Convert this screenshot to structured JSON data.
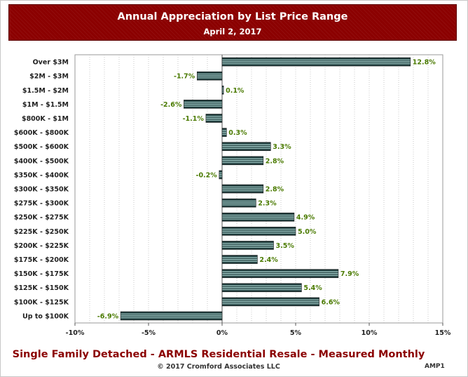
{
  "header": {
    "title": "Annual Appreciation by List Price Range",
    "subtitle": "April 2, 2017"
  },
  "footer": {
    "main": "Single Family Detached - ARMLS Residential Resale - Measured Monthly",
    "copyright": "© 2017 Cromford Associates LLC",
    "code": "AMP1"
  },
  "colors": {
    "header_bg": "#8b0000",
    "bar_dark": "#1e3a3a",
    "bar_light": "#a9d4d0",
    "value_label": "#4a7a00",
    "grid": "#bbbbbb"
  },
  "chart_data": {
    "type": "bar",
    "orientation": "horizontal",
    "title": "Annual Appreciation by List Price Range",
    "subtitle": "April 2, 2017",
    "categories": [
      "Over $3M",
      "$2M - $3M",
      "$1.5M - $2M",
      "$1M - $1.5M",
      "$800K - $1M",
      "$600K - $800K",
      "$500K - $600K",
      "$400K - $500K",
      "$350K - $400K",
      "$300K - $350K",
      "$275K - $300K",
      "$250K - $275K",
      "$225K - $250K",
      "$200K - $225K",
      "$175K - $200K",
      "$150K - $175K",
      "$125K - $150K",
      "$100K - $125K",
      "Up to $100K"
    ],
    "values": [
      12.8,
      -1.7,
      0.1,
      -2.6,
      -1.1,
      0.3,
      3.3,
      2.8,
      -0.2,
      2.8,
      2.3,
      4.9,
      5.0,
      3.5,
      2.4,
      7.9,
      5.4,
      6.6,
      -6.9
    ],
    "value_labels": [
      "12.8%",
      "-1.7%",
      "0.1%",
      "-2.6%",
      "-1.1%",
      "0.3%",
      "3.3%",
      "2.8%",
      "-0.2%",
      "2.8%",
      "2.3%",
      "4.9%",
      "5.0%",
      "3.5%",
      "2.4%",
      "7.9%",
      "5.4%",
      "6.6%",
      "-6.9%"
    ],
    "xlim": [
      -10,
      15
    ],
    "xticks": [
      -10,
      -5,
      0,
      5,
      10,
      15
    ],
    "xtick_labels": [
      "-10%",
      "-5%",
      "0%",
      "5%",
      "10%",
      "15%"
    ],
    "xlabel": "",
    "ylabel": "",
    "grid": "vertical dotted",
    "legend": "none"
  }
}
